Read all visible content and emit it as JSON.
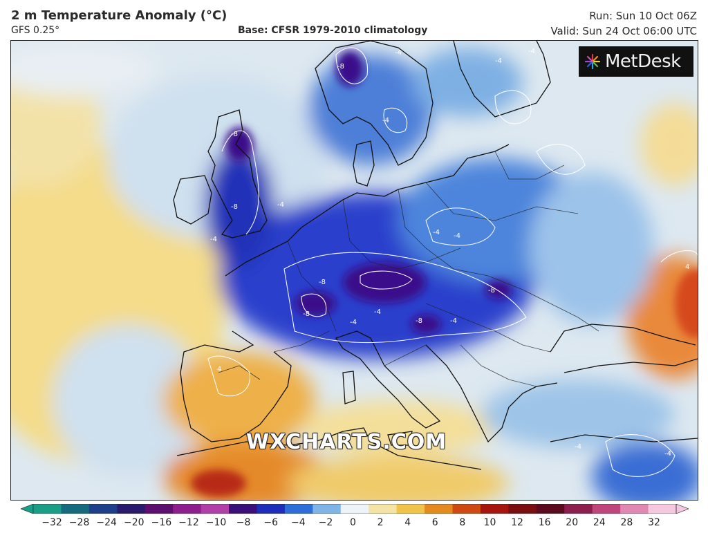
{
  "header": {
    "title": "2 m Temperature Anomaly (°C)",
    "model": "GFS 0.25°",
    "base": "Base: CFSR 1979-2010 climatology",
    "run": "Run: Sun 10 Oct 06Z",
    "valid": "Valid: Sun 24 Oct 06:00 UTC"
  },
  "logo": {
    "text": "MetDesk",
    "icon": "metdesk-star-icon"
  },
  "watermark": "WXCHARTS.COM",
  "contour_labels": [
    "-4",
    "-4",
    "-4",
    "-4",
    "-4",
    "-4",
    "-4",
    "-4",
    "-4",
    "-4",
    "-8",
    "-8",
    "-8",
    "-8",
    "-8",
    "-8",
    "-8",
    "-4",
    "4",
    "4",
    "-4",
    "-4"
  ],
  "colorbar": {
    "ticks": [
      "−32",
      "−28",
      "−24",
      "−20",
      "−16",
      "−12",
      "−10",
      "−8",
      "−6",
      "−4",
      "−2",
      "0",
      "2",
      "4",
      "6",
      "8",
      "10",
      "12",
      "16",
      "20",
      "24",
      "28",
      "32"
    ],
    "colors": [
      "#1a9e86",
      "#166b7f",
      "#1f3f8a",
      "#2a1a6e",
      "#5c0f6e",
      "#8e1e8e",
      "#b23fa8",
      "#3a0f7a",
      "#1e2dba",
      "#2d6ed8",
      "#7fb4e6",
      "#eef3f7",
      "#f3e3a4",
      "#f0c44c",
      "#e58a1f",
      "#cf4a12",
      "#a5160f",
      "#7a0d10",
      "#5a0a1c",
      "#8d1e4d",
      "#c0457c",
      "#e088b2",
      "#f6c8e0"
    ]
  }
}
